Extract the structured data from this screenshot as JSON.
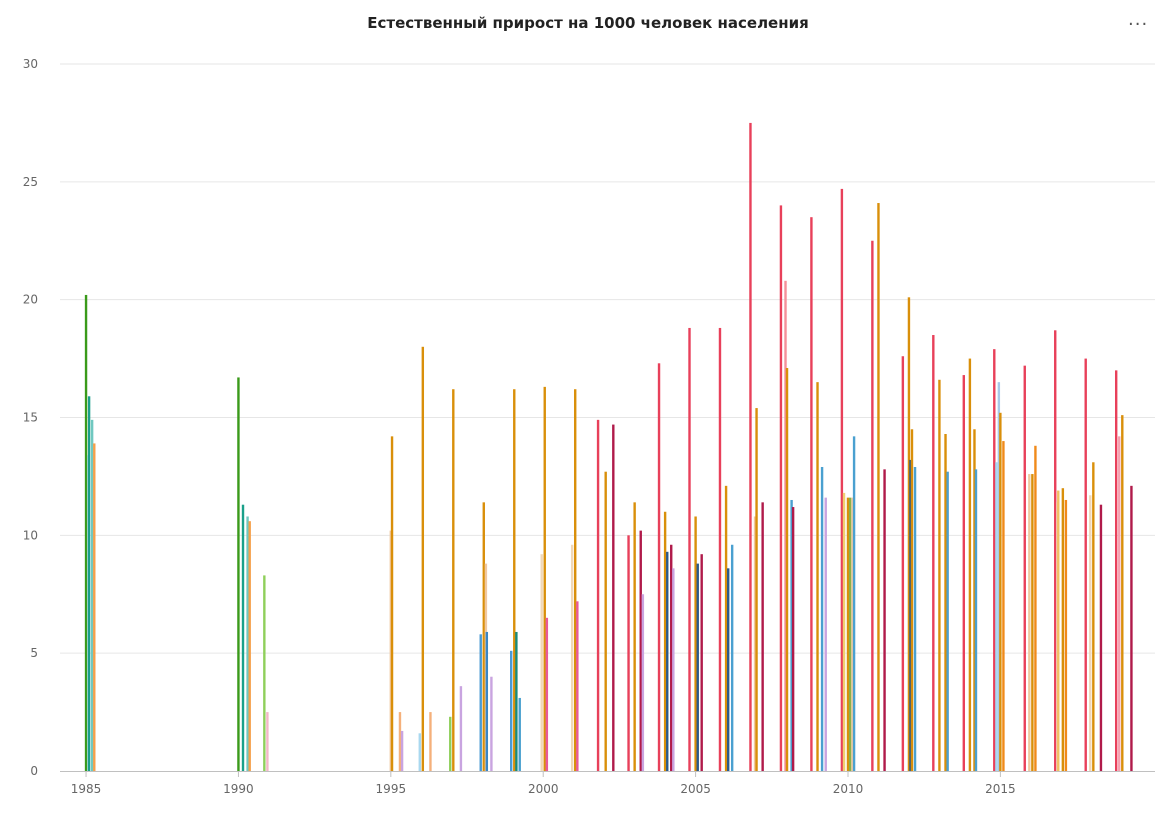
{
  "title": "Естественный прирост на 1000 человек населения",
  "menu": {
    "label": "···"
  },
  "chart_data": {
    "type": "bar",
    "title": "Естественный прирост на 1000 человек населения",
    "xlabel": "",
    "ylabel": "",
    "xlim": [
      1984.9,
      2019.45
    ],
    "ylim": [
      0,
      30
    ],
    "y_ticks": [
      0,
      5,
      10,
      15,
      20,
      25,
      30
    ],
    "x_ticks": [
      1985,
      1990,
      1995,
      2000,
      2005,
      2010,
      2015
    ],
    "grid": true,
    "legend": "none",
    "bars": [
      {
        "x": 1985.0,
        "value": 20.2,
        "color": "#3a9a1a"
      },
      {
        "x": 1985.07,
        "value": 13.4,
        "color": "#9fd6cf"
      },
      {
        "x": 1985.1,
        "value": 15.9,
        "color": "#1aa08a"
      },
      {
        "x": 1985.2,
        "value": 14.9,
        "color": "#6fc8c0"
      },
      {
        "x": 1985.27,
        "value": 13.9,
        "color": "#f5a04b"
      },
      {
        "x": 1990.0,
        "value": 16.7,
        "color": "#3a9a1a"
      },
      {
        "x": 1990.15,
        "value": 11.3,
        "color": "#1aa08a"
      },
      {
        "x": 1990.3,
        "value": 10.8,
        "color": "#6fc8c0"
      },
      {
        "x": 1990.37,
        "value": 10.6,
        "color": "#f5a04b"
      },
      {
        "x": 1990.85,
        "value": 8.3,
        "color": "#8fcf5a"
      },
      {
        "x": 1990.95,
        "value": 2.5,
        "color": "#f4b6c8"
      },
      {
        "x": 1995.0,
        "value": 10.2,
        "color": "#f0c8a0"
      },
      {
        "x": 1995.04,
        "value": 14.2,
        "color": "#d98f0a"
      },
      {
        "x": 1995.3,
        "value": 2.5,
        "color": "#f5b07a"
      },
      {
        "x": 1995.37,
        "value": 1.7,
        "color": "#c9a4e0"
      },
      {
        "x": 1995.95,
        "value": 1.6,
        "color": "#a8d8f0"
      },
      {
        "x": 1996.05,
        "value": 18.0,
        "color": "#d98f0a"
      },
      {
        "x": 1996.3,
        "value": 2.5,
        "color": "#f5b07a"
      },
      {
        "x": 1996.95,
        "value": 2.3,
        "color": "#8fcf5a"
      },
      {
        "x": 1997.05,
        "value": 16.2,
        "color": "#d98f0a"
      },
      {
        "x": 1997.3,
        "value": 3.6,
        "color": "#c9a4e0"
      },
      {
        "x": 1997.95,
        "value": 5.8,
        "color": "#4a9ad4"
      },
      {
        "x": 1998.05,
        "value": 11.4,
        "color": "#d98f0a"
      },
      {
        "x": 1998.12,
        "value": 8.8,
        "color": "#f0c8a0"
      },
      {
        "x": 1998.15,
        "value": 5.9,
        "color": "#3a86c4"
      },
      {
        "x": 1998.3,
        "value": 4.0,
        "color": "#c9a4e0"
      },
      {
        "x": 1998.95,
        "value": 5.1,
        "color": "#4a9ad4"
      },
      {
        "x": 1999.05,
        "value": 16.2,
        "color": "#d98f0a"
      },
      {
        "x": 1999.12,
        "value": 5.9,
        "color": "#1a8a7a"
      },
      {
        "x": 1999.23,
        "value": 3.1,
        "color": "#4aa0d0"
      },
      {
        "x": 1999.95,
        "value": 9.2,
        "color": "#f0d8b8"
      },
      {
        "x": 2000.05,
        "value": 16.3,
        "color": "#d98f0a"
      },
      {
        "x": 2000.12,
        "value": 6.5,
        "color": "#e85a9a"
      },
      {
        "x": 2000.95,
        "value": 9.6,
        "color": "#f0d8b8"
      },
      {
        "x": 2001.05,
        "value": 16.2,
        "color": "#d98f0a"
      },
      {
        "x": 2001.12,
        "value": 7.2,
        "color": "#e85a9a"
      },
      {
        "x": 2001.8,
        "value": 14.9,
        "color": "#e8405a"
      },
      {
        "x": 2002.05,
        "value": 12.7,
        "color": "#d98f0a"
      },
      {
        "x": 2002.3,
        "value": 14.7,
        "color": "#b01a4a"
      },
      {
        "x": 2002.8,
        "value": 10.0,
        "color": "#e8405a"
      },
      {
        "x": 2003.0,
        "value": 11.4,
        "color": "#d98f0a"
      },
      {
        "x": 2003.2,
        "value": 10.2,
        "color": "#b01a4a"
      },
      {
        "x": 2003.27,
        "value": 7.5,
        "color": "#c9a4e0"
      },
      {
        "x": 2003.8,
        "value": 17.3,
        "color": "#e8405a"
      },
      {
        "x": 2004.0,
        "value": 11.0,
        "color": "#d98f0a"
      },
      {
        "x": 2004.07,
        "value": 9.3,
        "color": "#2a5a8a"
      },
      {
        "x": 2004.2,
        "value": 9.6,
        "color": "#b01a4a"
      },
      {
        "x": 2004.27,
        "value": 8.6,
        "color": "#c9a4e0"
      },
      {
        "x": 2004.8,
        "value": 18.8,
        "color": "#e8405a"
      },
      {
        "x": 2005.0,
        "value": 10.8,
        "color": "#d98f0a"
      },
      {
        "x": 2005.07,
        "value": 8.8,
        "color": "#2a5a8a"
      },
      {
        "x": 2005.2,
        "value": 9.2,
        "color": "#b01a4a"
      },
      {
        "x": 2005.8,
        "value": 18.8,
        "color": "#e8405a"
      },
      {
        "x": 2006.0,
        "value": 12.1,
        "color": "#d98f0a"
      },
      {
        "x": 2006.07,
        "value": 8.6,
        "color": "#2a5a8a"
      },
      {
        "x": 2006.2,
        "value": 9.6,
        "color": "#4aa0d0"
      },
      {
        "x": 2006.8,
        "value": 27.5,
        "color": "#e8405a"
      },
      {
        "x": 2006.95,
        "value": 10.8,
        "color": "#f0c8a0"
      },
      {
        "x": 2007.0,
        "value": 15.4,
        "color": "#d98f0a"
      },
      {
        "x": 2007.2,
        "value": 11.4,
        "color": "#b01a4a"
      },
      {
        "x": 2007.8,
        "value": 24.0,
        "color": "#e8405a"
      },
      {
        "x": 2007.95,
        "value": 20.8,
        "color": "#f5909a"
      },
      {
        "x": 2008.0,
        "value": 17.1,
        "color": "#d98f0a"
      },
      {
        "x": 2008.15,
        "value": 11.5,
        "color": "#4aa0d0"
      },
      {
        "x": 2008.2,
        "value": 11.2,
        "color": "#b01a4a"
      },
      {
        "x": 2008.8,
        "value": 23.5,
        "color": "#e8405a"
      },
      {
        "x": 2009.0,
        "value": 16.5,
        "color": "#d98f0a"
      },
      {
        "x": 2009.15,
        "value": 12.9,
        "color": "#4aa0d0"
      },
      {
        "x": 2009.27,
        "value": 11.6,
        "color": "#c9a4e0"
      },
      {
        "x": 2009.8,
        "value": 24.7,
        "color": "#e8405a"
      },
      {
        "x": 2009.87,
        "value": 11.8,
        "color": "#f0d070"
      },
      {
        "x": 2010.0,
        "value": 11.6,
        "color": "#d98f0a"
      },
      {
        "x": 2010.07,
        "value": 11.6,
        "color": "#8ab04a"
      },
      {
        "x": 2010.15,
        "value": 11.6,
        "color": "#f0c8a0"
      },
      {
        "x": 2010.2,
        "value": 14.2,
        "color": "#4aa0d0"
      },
      {
        "x": 2010.8,
        "value": 22.5,
        "color": "#e8405a"
      },
      {
        "x": 2011.0,
        "value": 24.1,
        "color": "#d98f0a"
      },
      {
        "x": 2011.2,
        "value": 12.8,
        "color": "#b01a4a"
      },
      {
        "x": 2011.8,
        "value": 17.6,
        "color": "#e8405a"
      },
      {
        "x": 2012.0,
        "value": 20.1,
        "color": "#d98f0a"
      },
      {
        "x": 2012.05,
        "value": 13.2,
        "color": "#2a5a8a"
      },
      {
        "x": 2012.1,
        "value": 14.5,
        "color": "#d98f0a"
      },
      {
        "x": 2012.2,
        "value": 12.9,
        "color": "#4aa0d0"
      },
      {
        "x": 2012.8,
        "value": 18.5,
        "color": "#e8405a"
      },
      {
        "x": 2013.0,
        "value": 16.6,
        "color": "#d98f0a"
      },
      {
        "x": 2013.2,
        "value": 14.3,
        "color": "#d98f0a"
      },
      {
        "x": 2013.27,
        "value": 12.7,
        "color": "#4aa0d0"
      },
      {
        "x": 2013.8,
        "value": 16.8,
        "color": "#e8405a"
      },
      {
        "x": 2014.0,
        "value": 17.5,
        "color": "#d98f0a"
      },
      {
        "x": 2014.15,
        "value": 14.5,
        "color": "#d98f0a"
      },
      {
        "x": 2014.2,
        "value": 12.8,
        "color": "#4aa0d0"
      },
      {
        "x": 2014.8,
        "value": 17.9,
        "color": "#e8405a"
      },
      {
        "x": 2014.87,
        "value": 13.1,
        "color": "#a8d8f0"
      },
      {
        "x": 2014.95,
        "value": 16.5,
        "color": "#a8c8e8"
      },
      {
        "x": 2015.0,
        "value": 15.2,
        "color": "#d98f0a"
      },
      {
        "x": 2015.1,
        "value": 14.0,
        "color": "#f08a1a"
      },
      {
        "x": 2015.8,
        "value": 17.2,
        "color": "#e8405a"
      },
      {
        "x": 2015.95,
        "value": 12.6,
        "color": "#f0c8a0"
      },
      {
        "x": 2016.05,
        "value": 12.6,
        "color": "#d98f0a"
      },
      {
        "x": 2016.15,
        "value": 13.8,
        "color": "#f08a1a"
      },
      {
        "x": 2016.8,
        "value": 18.7,
        "color": "#e8405a"
      },
      {
        "x": 2016.87,
        "value": 11.4,
        "color": "#f0d8b8"
      },
      {
        "x": 2016.9,
        "value": 11.9,
        "color": "#f0c060"
      },
      {
        "x": 2017.05,
        "value": 12.0,
        "color": "#d98f0a"
      },
      {
        "x": 2017.15,
        "value": 11.5,
        "color": "#f08a1a"
      },
      {
        "x": 2017.8,
        "value": 17.5,
        "color": "#e8405a"
      },
      {
        "x": 2017.95,
        "value": 11.7,
        "color": "#f0d8b8"
      },
      {
        "x": 2018.05,
        "value": 13.1,
        "color": "#d98f0a"
      },
      {
        "x": 2018.3,
        "value": 11.3,
        "color": "#b01a4a"
      },
      {
        "x": 2018.8,
        "value": 17.0,
        "color": "#e8405a"
      },
      {
        "x": 2018.9,
        "value": 14.2,
        "color": "#f5a0b0"
      },
      {
        "x": 2019.0,
        "value": 15.1,
        "color": "#d98f0a"
      },
      {
        "x": 2019.3,
        "value": 12.1,
        "color": "#b01a4a"
      }
    ]
  }
}
